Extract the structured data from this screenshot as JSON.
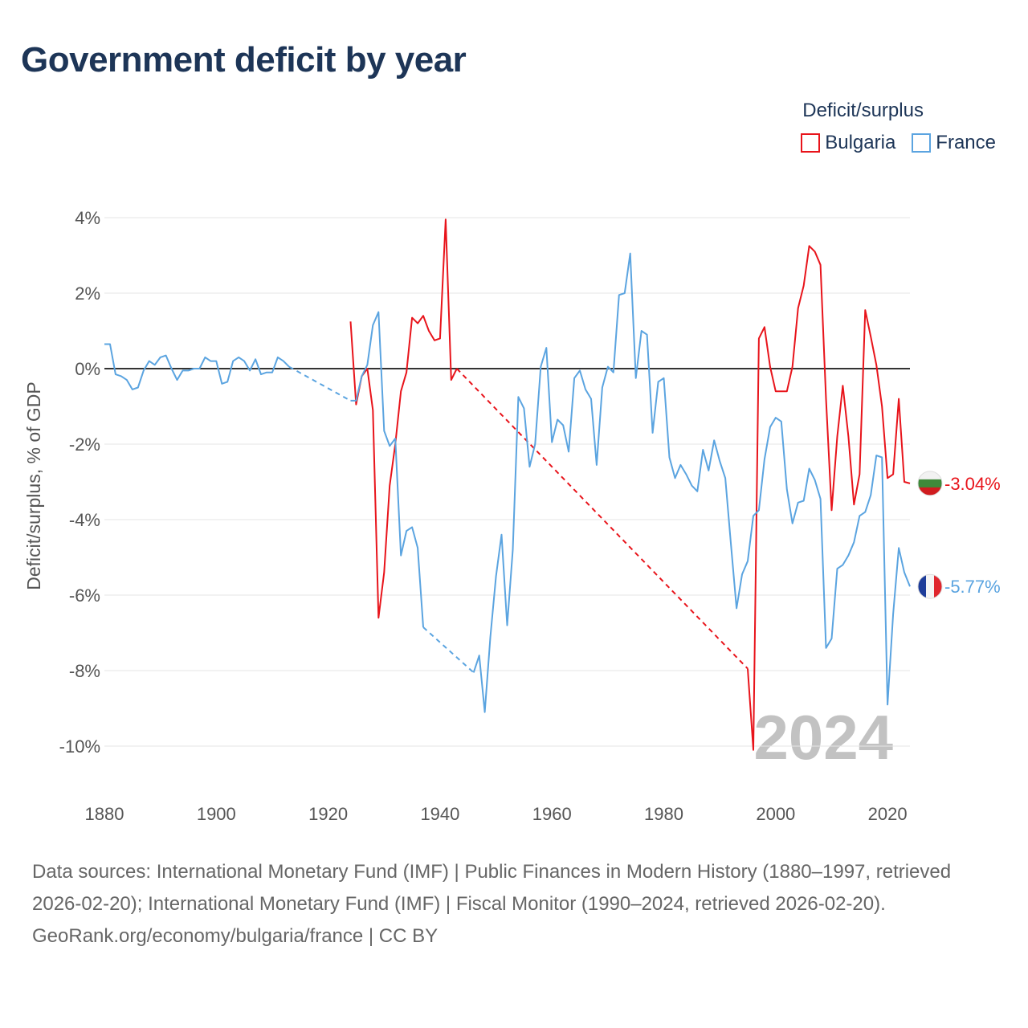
{
  "title": "Government deficit by year",
  "legend": {
    "title": "Deficit/surplus",
    "items": [
      {
        "name": "Bulgaria",
        "color": "#e8141b"
      },
      {
        "name": "France",
        "color": "#5ba4e0"
      }
    ]
  },
  "chart_data": {
    "type": "line",
    "title": "Government deficit by year",
    "xlabel": "",
    "ylabel": "Deficit/surplus, % of GDP",
    "xlim": [
      1880,
      2024
    ],
    "ylim": [
      -10,
      4
    ],
    "x_ticks": [
      1880,
      1900,
      1920,
      1940,
      1960,
      1980,
      2000,
      2020
    ],
    "y_ticks": [
      4,
      2,
      0,
      -2,
      -4,
      -6,
      -8,
      -10
    ],
    "y_tick_labels": [
      "4%",
      "2%",
      "0%",
      "-2%",
      "-4%",
      "-6%",
      "-8%",
      "-10%"
    ],
    "watermark_year": "2024",
    "series": [
      {
        "name": "Bulgaria",
        "color": "#e8141b",
        "end_label": "-3.04%",
        "segments": [
          [
            [
              1924,
              1.25
            ],
            [
              1925,
              -0.95
            ],
            [
              1926,
              -0.2
            ],
            [
              1927,
              0
            ],
            [
              1928,
              -1.1
            ],
            [
              1929,
              -6.6
            ],
            [
              1930,
              -5.4
            ],
            [
              1931,
              -3.1
            ],
            [
              1932,
              -2.0
            ],
            [
              1933,
              -0.6
            ],
            [
              1934,
              -0.1
            ],
            [
              1935,
              1.35
            ],
            [
              1936,
              1.2
            ],
            [
              1937,
              1.4
            ],
            [
              1938,
              1.0
            ],
            [
              1939,
              0.75
            ],
            [
              1940,
              0.8
            ],
            [
              1941,
              3.95
            ],
            [
              1942,
              -0.3
            ],
            [
              1943,
              0.0
            ]
          ],
          [
            [
              1995,
              -7.95
            ],
            [
              1996,
              -10.1
            ],
            [
              1997,
              0.8
            ],
            [
              1998,
              1.1
            ],
            [
              1999,
              0.05
            ],
            [
              2000,
              -0.6
            ],
            [
              2001,
              -0.6
            ],
            [
              2002,
              -0.6
            ],
            [
              2003,
              0.05
            ],
            [
              2004,
              1.6
            ],
            [
              2005,
              2.2
            ],
            [
              2006,
              3.25
            ],
            [
              2007,
              3.1
            ],
            [
              2008,
              2.75
            ],
            [
              2009,
              -0.8
            ],
            [
              2010,
              -3.75
            ],
            [
              2011,
              -1.8
            ],
            [
              2012,
              -0.45
            ],
            [
              2013,
              -1.8
            ],
            [
              2014,
              -3.6
            ],
            [
              2015,
              -2.8
            ],
            [
              2016,
              1.55
            ],
            [
              2017,
              0.85
            ],
            [
              2018,
              0.1
            ],
            [
              2019,
              -1.0
            ],
            [
              2020,
              -2.9
            ],
            [
              2021,
              -2.8
            ],
            [
              2022,
              -0.8
            ],
            [
              2023,
              -3.0
            ],
            [
              2024,
              -3.04
            ]
          ]
        ],
        "dashed_gaps": [
          [
            [
              1943,
              0.0
            ],
            [
              1995,
              -7.95
            ]
          ]
        ]
      },
      {
        "name": "France",
        "color": "#5ba4e0",
        "end_label": "-5.77%",
        "segments": [
          [
            [
              1880,
              0.65
            ],
            [
              1881,
              0.65
            ],
            [
              1882,
              -0.15
            ],
            [
              1883,
              -0.2
            ],
            [
              1884,
              -0.3
            ],
            [
              1885,
              -0.55
            ],
            [
              1886,
              -0.5
            ],
            [
              1887,
              -0.05
            ],
            [
              1888,
              0.2
            ],
            [
              1889,
              0.1
            ],
            [
              1890,
              0.3
            ],
            [
              1891,
              0.35
            ],
            [
              1892,
              0.0
            ],
            [
              1893,
              -0.3
            ],
            [
              1894,
              -0.05
            ],
            [
              1895,
              -0.05
            ],
            [
              1896,
              0.0
            ],
            [
              1897,
              0.0
            ],
            [
              1898,
              0.3
            ],
            [
              1899,
              0.2
            ],
            [
              1900,
              0.2
            ],
            [
              1901,
              -0.4
            ],
            [
              1902,
              -0.35
            ],
            [
              1903,
              0.2
            ],
            [
              1904,
              0.3
            ],
            [
              1905,
              0.2
            ],
            [
              1906,
              -0.05
            ],
            [
              1907,
              0.25
            ],
            [
              1908,
              -0.15
            ],
            [
              1909,
              -0.1
            ],
            [
              1910,
              -0.1
            ],
            [
              1911,
              0.3
            ],
            [
              1912,
              0.2
            ],
            [
              1913,
              0.05
            ]
          ],
          [
            [
              1924,
              -0.85
            ],
            [
              1925,
              -0.85
            ],
            [
              1926,
              -0.2
            ],
            [
              1927,
              0.1
            ],
            [
              1928,
              1.15
            ],
            [
              1929,
              1.5
            ],
            [
              1930,
              -1.65
            ],
            [
              1931,
              -2.05
            ],
            [
              1932,
              -1.85
            ],
            [
              1933,
              -4.95
            ],
            [
              1934,
              -4.3
            ],
            [
              1935,
              -4.2
            ],
            [
              1936,
              -4.75
            ],
            [
              1937,
              -6.85
            ]
          ],
          [
            [
              1946,
              -8.05
            ],
            [
              1947,
              -7.6
            ],
            [
              1948,
              -9.1
            ],
            [
              1949,
              -7.1
            ],
            [
              1950,
              -5.5
            ],
            [
              1951,
              -4.4
            ],
            [
              1952,
              -6.8
            ],
            [
              1953,
              -4.8
            ],
            [
              1954,
              -0.75
            ],
            [
              1955,
              -1.05
            ],
            [
              1956,
              -2.6
            ],
            [
              1957,
              -2.0
            ],
            [
              1958,
              0.05
            ],
            [
              1959,
              0.55
            ],
            [
              1960,
              -1.95
            ],
            [
              1961,
              -1.35
            ],
            [
              1962,
              -1.5
            ],
            [
              1963,
              -2.2
            ],
            [
              1964,
              -0.25
            ],
            [
              1965,
              -0.05
            ],
            [
              1966,
              -0.55
            ],
            [
              1967,
              -0.8
            ],
            [
              1968,
              -2.55
            ],
            [
              1969,
              -0.5
            ],
            [
              1970,
              0.05
            ],
            [
              1971,
              -0.1
            ],
            [
              1972,
              1.95
            ],
            [
              1973,
              2.0
            ],
            [
              1974,
              3.05
            ],
            [
              1975,
              -0.25
            ],
            [
              1976,
              1.0
            ],
            [
              1977,
              0.9
            ],
            [
              1978,
              -1.7
            ],
            [
              1979,
              -0.35
            ],
            [
              1980,
              -0.25
            ],
            [
              1981,
              -2.35
            ],
            [
              1982,
              -2.9
            ],
            [
              1983,
              -2.55
            ],
            [
              1984,
              -2.8
            ],
            [
              1985,
              -3.1
            ],
            [
              1986,
              -3.25
            ],
            [
              1987,
              -2.15
            ],
            [
              1988,
              -2.7
            ],
            [
              1989,
              -1.9
            ],
            [
              1990,
              -2.45
            ],
            [
              1991,
              -2.9
            ],
            [
              1992,
              -4.65
            ],
            [
              1993,
              -6.35
            ],
            [
              1994,
              -5.45
            ],
            [
              1995,
              -5.1
            ],
            [
              1996,
              -3.9
            ],
            [
              1997,
              -3.75
            ],
            [
              1998,
              -2.4
            ],
            [
              1999,
              -1.55
            ],
            [
              2000,
              -1.3
            ],
            [
              2001,
              -1.4
            ],
            [
              2002,
              -3.2
            ],
            [
              2003,
              -4.1
            ],
            [
              2004,
              -3.55
            ],
            [
              2005,
              -3.5
            ],
            [
              2006,
              -2.65
            ],
            [
              2007,
              -2.95
            ],
            [
              2008,
              -3.45
            ],
            [
              2009,
              -7.4
            ],
            [
              2010,
              -7.15
            ],
            [
              2011,
              -5.3
            ],
            [
              2012,
              -5.2
            ],
            [
              2013,
              -4.95
            ],
            [
              2014,
              -4.6
            ],
            [
              2015,
              -3.9
            ],
            [
              2016,
              -3.8
            ],
            [
              2017,
              -3.35
            ],
            [
              2018,
              -2.3
            ],
            [
              2019,
              -2.35
            ],
            [
              2020,
              -8.9
            ],
            [
              2021,
              -6.5
            ],
            [
              2022,
              -4.75
            ],
            [
              2023,
              -5.4
            ],
            [
              2024,
              -5.77
            ]
          ]
        ],
        "dashed_gaps": [
          [
            [
              1913,
              0.05
            ],
            [
              1924,
              -0.85
            ]
          ],
          [
            [
              1937,
              -6.85
            ],
            [
              1946,
              -8.05
            ]
          ]
        ]
      }
    ]
  },
  "footer": {
    "sources": "Data sources: International Monetary Fund (IMF) | Public Finances in Modern History (1880–1997, retrieved 2026-02-20); International Monetary Fund (IMF) | Fiscal Monitor (1990–2024, retrieved 2026-02-20).",
    "credit": "GeoRank.org/economy/bulgaria/france | CC BY"
  }
}
